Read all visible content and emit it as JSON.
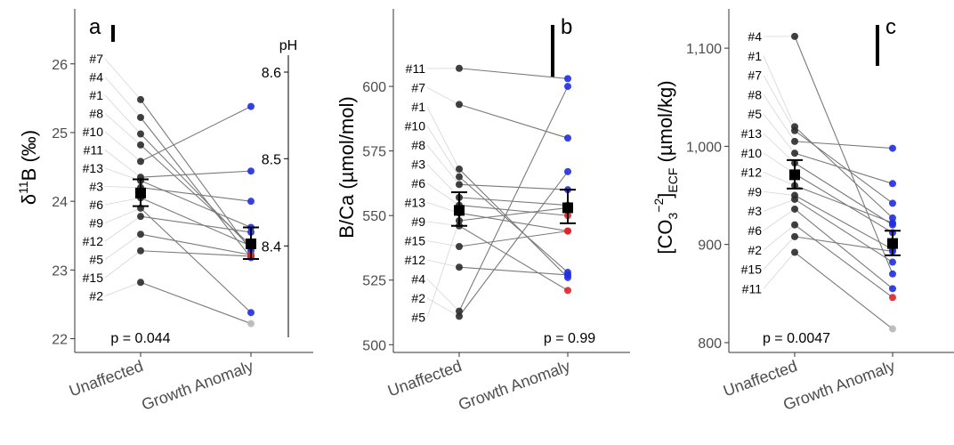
{
  "chart_data": [
    {
      "type": "scatter",
      "panel": "a",
      "ylabel": "δ11B (‰)",
      "ylabel_main": "δ",
      "ylabel_sup": "11",
      "ylabel_rest": "B (‰)",
      "categories": [
        "Unaffected",
        "Growth Anomaly"
      ],
      "ylim": [
        21.8,
        26.8
      ],
      "yticks": [
        22,
        23,
        24,
        25,
        26
      ],
      "ytick_labels": [
        "22",
        "23",
        "24",
        "25",
        "26"
      ],
      "p_value": "p = 0.044",
      "pairs": [
        {
          "id": "#7",
          "unaffected": 25.48,
          "anomaly": 23.28
        },
        {
          "id": "#4",
          "unaffected": 25.22,
          "anomaly": 23.18
        },
        {
          "id": "#1",
          "unaffected": 24.98,
          "anomaly": 23.32
        },
        {
          "id": "#8",
          "unaffected": 24.82,
          "anomaly": 23.36
        },
        {
          "id": "#10",
          "unaffected": 24.58,
          "anomaly": 25.38
        },
        {
          "id": "#11",
          "unaffected": 24.35,
          "anomaly": 24.44
        },
        {
          "id": "#13",
          "unaffected": 24.3,
          "anomaly": 23.62
        },
        {
          "id": "#3",
          "unaffected": 24.2,
          "anomaly": 24.0
        },
        {
          "id": "#6",
          "unaffected": 24.05,
          "anomaly": 23.35
        },
        {
          "id": "#9",
          "unaffected": 23.9,
          "anomaly": 22.38
        },
        {
          "id": "#12",
          "unaffected": 23.78,
          "anomaly": 23.55
        },
        {
          "id": "#5",
          "unaffected": 23.52,
          "anomaly": 23.22
        },
        {
          "id": "#15",
          "unaffected": 23.28,
          "anomaly": 23.2
        },
        {
          "id": "#2",
          "unaffected": 22.82,
          "anomaly": 22.22
        }
      ],
      "anomaly_colors": [
        "blue",
        "blue",
        "blue",
        "blue",
        "blue",
        "blue",
        "blue",
        "blue",
        "blue",
        "blue",
        "blue",
        "red",
        "red",
        "grey"
      ],
      "mean_unaffected": 24.12,
      "se_unaffected": [
        23.93,
        24.32
      ],
      "mean_anomaly": 23.38,
      "se_anomaly": [
        23.16,
        23.62
      ],
      "scale_bar": true,
      "ph_axis": {
        "label": "pH",
        "ticks": [
          8.4,
          8.5,
          8.6
        ],
        "tick_labels": [
          "8.4",
          "8.5",
          "8.6"
        ],
        "y_positions": [
          23.35,
          24.62,
          25.88
        ]
      }
    },
    {
      "type": "scatter",
      "panel": "b",
      "ylabel": "B/Ca (µmol/mol)",
      "categories": [
        "Unaffected",
        "Growth Anomaly"
      ],
      "ylim": [
        497,
        630
      ],
      "yticks": [
        500,
        525,
        550,
        575,
        600
      ],
      "ytick_labels": [
        "500",
        "525",
        "550",
        "575",
        "600"
      ],
      "p_value": "p = 0.99",
      "pairs": [
        {
          "id": "#11",
          "unaffected": 607,
          "anomaly": 603
        },
        {
          "id": "#7",
          "unaffected": 593,
          "anomaly": 580
        },
        {
          "id": "#1",
          "unaffected": 568,
          "anomaly": 526
        },
        {
          "id": "#10",
          "unaffected": 565,
          "anomaly": 528
        },
        {
          "id": "#8",
          "unaffected": 562,
          "anomaly": 560
        },
        {
          "id": "#3",
          "unaffected": 557,
          "anomaly": 554
        },
        {
          "id": "#6",
          "unaffected": 554,
          "anomaly": 550
        },
        {
          "id": "#13",
          "unaffected": 551,
          "anomaly": 544
        },
        {
          "id": "#9",
          "unaffected": 546,
          "anomaly": 521
        },
        {
          "id": "#15",
          "unaffected": 538,
          "anomaly": 544
        },
        {
          "id": "#12",
          "unaffected": 530,
          "anomaly": 527
        },
        {
          "id": "#4",
          "unaffected": 513,
          "anomaly": 600
        },
        {
          "id": "#2",
          "unaffected": 511,
          "anomaly": 567
        },
        {
          "id": "#5",
          "unaffected": 548,
          "anomaly": 553
        }
      ],
      "anomaly_colors": [
        "blue",
        "blue",
        "blue",
        "blue",
        "blue",
        "blue",
        "red",
        "red",
        "red",
        "red",
        "blue",
        "blue",
        "blue",
        "red"
      ],
      "mean_unaffected": 552,
      "se_unaffected": [
        546,
        559
      ],
      "mean_anomaly": 553,
      "se_anomaly": [
        547,
        560
      ],
      "scale_bar": true
    },
    {
      "type": "scatter",
      "panel": "c",
      "ylabel": "[CO32-]ECF (µmol/kg)",
      "ylabel_lead": "[CO",
      "ylabel_sub": "3",
      "ylabel_sup": "−2",
      "ylabel_close": "]",
      "ylabel_sub2": "ECF",
      "ylabel_unit": " (µmol/kg)",
      "categories": [
        "Unaffected",
        "Growth Anomaly"
      ],
      "ylim": [
        790,
        1140
      ],
      "yticks": [
        800,
        900,
        1000,
        1100
      ],
      "ytick_labels": [
        "800",
        "900",
        "1,000",
        "1,100"
      ],
      "p_value": "p = 0.0047",
      "pairs": [
        {
          "id": "#4",
          "unaffected": 1112,
          "anomaly": 870
        },
        {
          "id": "#1",
          "unaffected": 1020,
          "anomaly": 927
        },
        {
          "id": "#7",
          "unaffected": 1016,
          "anomaly": 942
        },
        {
          "id": "#8",
          "unaffected": 1005,
          "anomaly": 998
        },
        {
          "id": "#5",
          "unaffected": 993,
          "anomaly": 962
        },
        {
          "id": "#13",
          "unaffected": 983,
          "anomaly": 920
        },
        {
          "id": "#10",
          "unaffected": 972,
          "anomaly": 912
        },
        {
          "id": "#12",
          "unaffected": 960,
          "anomaly": 922
        },
        {
          "id": "#9",
          "unaffected": 950,
          "anomaly": 895
        },
        {
          "id": "#3",
          "unaffected": 946,
          "anomaly": 882
        },
        {
          "id": "#6",
          "unaffected": 936,
          "anomaly": 855
        },
        {
          "id": "#2",
          "unaffected": 920,
          "anomaly": 846
        },
        {
          "id": "#15",
          "unaffected": 908,
          "anomaly": 893
        },
        {
          "id": "#11",
          "unaffected": 892,
          "anomaly": 814
        }
      ],
      "anomaly_colors": [
        "blue",
        "blue",
        "blue",
        "blue",
        "blue",
        "blue",
        "blue",
        "blue",
        "blue",
        "blue",
        "blue",
        "red",
        "blue",
        "grey"
      ],
      "mean_unaffected": 971,
      "se_unaffected": [
        957,
        986
      ],
      "mean_anomaly": 901,
      "se_anomaly": [
        889,
        914
      ],
      "scale_bar": true
    }
  ],
  "colors": {
    "unaffected_point": "#2b2b2b",
    "anomaly_blue": "#1f2fe0",
    "anomaly_red": "#e0222a",
    "anomaly_grey": "#b8b8b8",
    "line": "#7a7a7a",
    "mean_marker": "#000000",
    "axis": "#333333"
  }
}
